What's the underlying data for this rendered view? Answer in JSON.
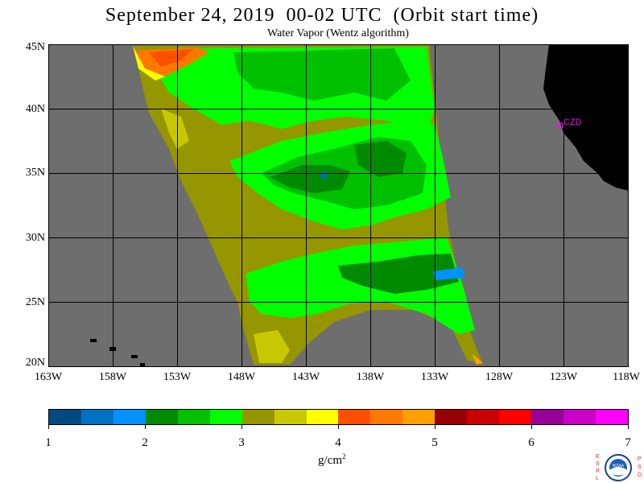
{
  "title": "September 24, 2019  00-02 UTC  (Orbit start time)",
  "subtitle": "Water Vapor (Wentz algorithm)",
  "lat_labels": [
    "45N",
    "40N",
    "35N",
    "30N",
    "25N",
    "20N"
  ],
  "lon_labels": [
    "163W",
    "158W",
    "153W",
    "148W",
    "143W",
    "138W",
    "133W",
    "128W",
    "123W",
    "118W"
  ],
  "station_label": "CZD",
  "colorbar": {
    "colors": [
      "#004a80",
      "#0070c0",
      "#0092ff",
      "#008a00",
      "#00c000",
      "#00ff00",
      "#969600",
      "#c8c800",
      "#ffff00",
      "#ff5000",
      "#ff7800",
      "#ffa000",
      "#960000",
      "#c80000",
      "#ff0000",
      "#960096",
      "#c800c8",
      "#ff00ff"
    ],
    "tick_labels": [
      "1",
      "2",
      "3",
      "4",
      "5",
      "6",
      "7"
    ],
    "units": "g/cm",
    "units_exp": "2"
  },
  "colors": {
    "ocean": "#6e6e6e",
    "land": "#000000",
    "grid": "#000000",
    "station": "#ff00ff"
  },
  "logo": {
    "left_letters": "ESRL",
    "right_letters": "PSD",
    "center_text": "NOAA"
  }
}
